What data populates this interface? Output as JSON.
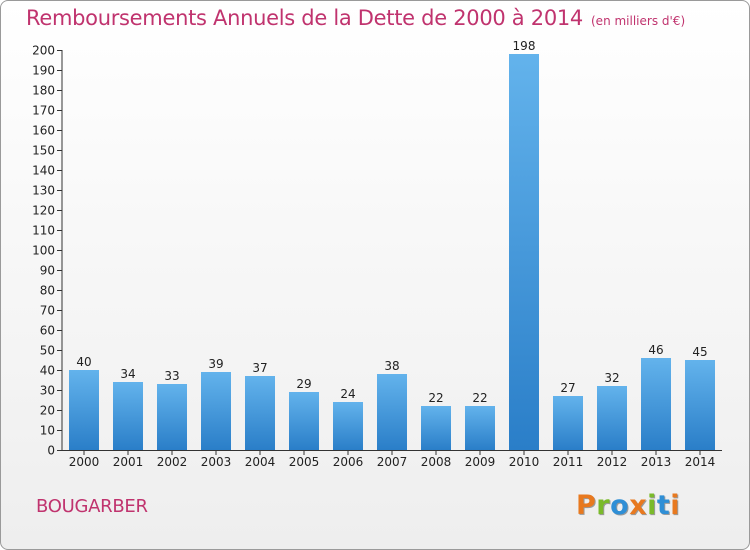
{
  "header": {
    "title": "Remboursements Annuels de la Dette de 2000 à 2014",
    "unit": "(en milliers d'€)"
  },
  "footer": {
    "place": "BOUGARBER",
    "logo": "Proxiti"
  },
  "colors": {
    "title": "#c0336e",
    "bar_top": "#63b3ec",
    "bar_bottom": "#2a7ec8",
    "logo": [
      "#e8791f",
      "#7aba2a",
      "#2f8fd6",
      "#e8791f",
      "#7aba2a",
      "#2f8fd6",
      "#e8791f"
    ]
  },
  "chart_data": {
    "type": "bar",
    "title": "Remboursements Annuels de la Dette de 2000 à 2014",
    "categories": [
      "2000",
      "2001",
      "2002",
      "2003",
      "2004",
      "2005",
      "2006",
      "2007",
      "2008",
      "2009",
      "2010",
      "2011",
      "2012",
      "2013",
      "2014"
    ],
    "values": [
      40,
      34,
      33,
      39,
      37,
      29,
      24,
      38,
      22,
      22,
      198,
      27,
      32,
      46,
      45
    ],
    "ylim": [
      0,
      200
    ],
    "yticks": [
      0,
      10,
      20,
      30,
      40,
      50,
      60,
      70,
      80,
      90,
      100,
      110,
      120,
      130,
      140,
      150,
      160,
      170,
      180,
      190,
      200
    ],
    "grid": false,
    "legend": "none"
  }
}
